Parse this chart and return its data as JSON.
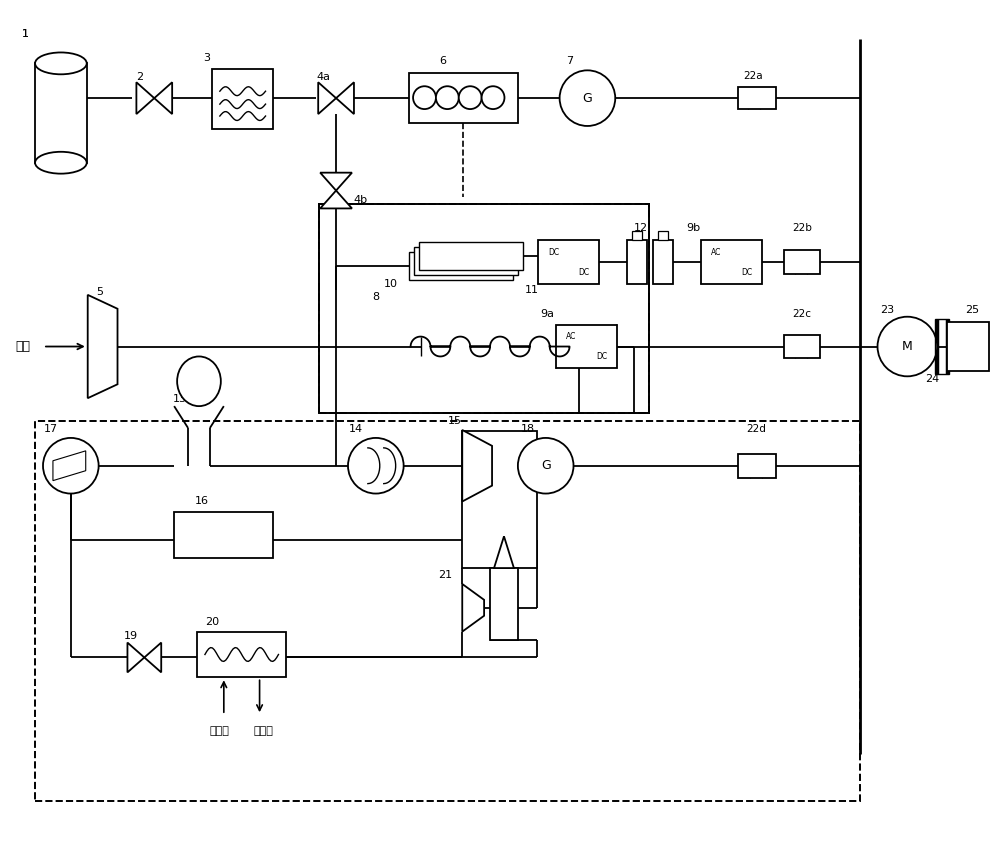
{
  "bg_color": "#ffffff",
  "line_color": "#000000",
  "figsize": [
    10.0,
    8.51
  ],
  "dpi": 100,
  "xlim": [
    0,
    10
  ],
  "ylim": [
    0,
    8.51
  ]
}
